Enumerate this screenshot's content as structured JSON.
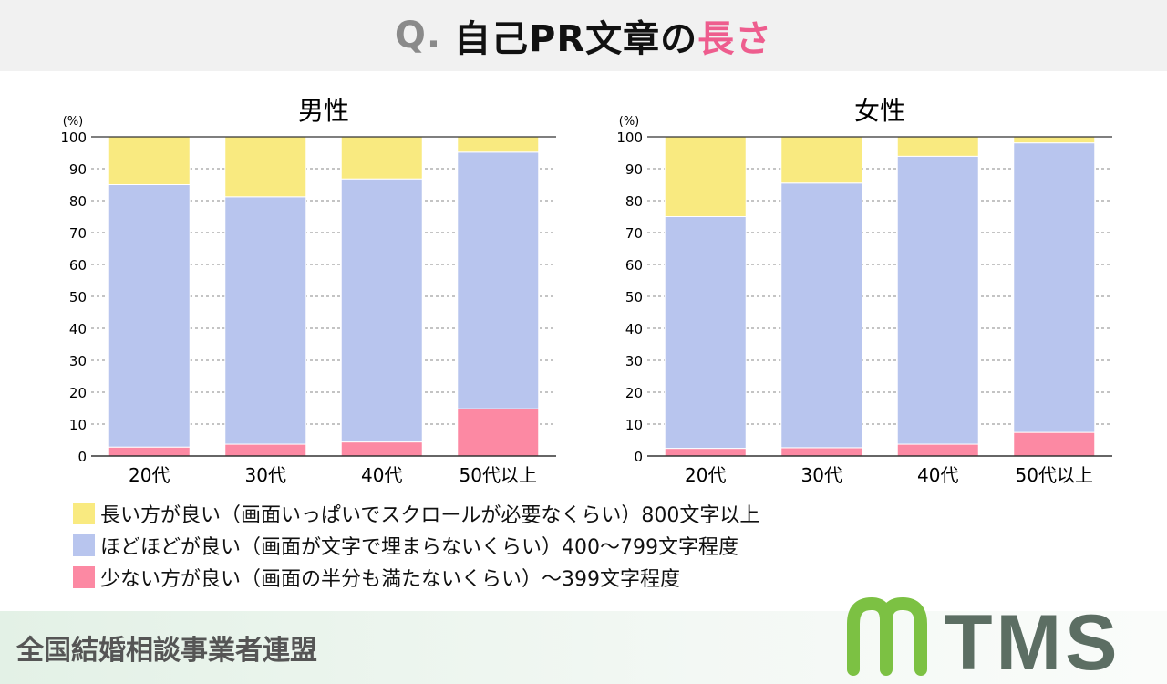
{
  "header": {
    "q": "Q.",
    "title_main": "自己PR文章の",
    "title_highlight": "長さ"
  },
  "colors": {
    "long": "#f9ea80",
    "medium": "#b8c5ee",
    "short": "#fc89a3",
    "highlight": "#ee5d8e",
    "logo_green": "#7cc143",
    "logo_gray": "#5c6e63"
  },
  "legend": [
    {
      "key": "long",
      "label": "長い方が良い（画面いっぱいでスクロールが必要なくらい）800文字以上"
    },
    {
      "key": "medium",
      "label": "ほどほどが良い（画面が文字で埋まらないくらい）400〜799文字程度"
    },
    {
      "key": "short",
      "label": "少ない方が良い（画面の半分も満たないくらい）〜399文字程度"
    }
  ],
  "chart_data": [
    {
      "type": "bar",
      "stacked": true,
      "title": "男性",
      "ylabel": "(%)",
      "ylim": [
        0,
        100
      ],
      "yticks": [
        0,
        10,
        20,
        30,
        40,
        50,
        60,
        70,
        80,
        90,
        100
      ],
      "grid": true,
      "categories": [
        "20代",
        "30代",
        "40代",
        "50代以上"
      ],
      "series": [
        {
          "key": "short",
          "values": [
            2.8,
            3.7,
            4.4,
            14.8
          ]
        },
        {
          "key": "medium",
          "values": [
            82.2,
            77.5,
            82.4,
            80.4
          ]
        },
        {
          "key": "long",
          "values": [
            15.0,
            18.8,
            13.2,
            4.8
          ]
        }
      ]
    },
    {
      "type": "bar",
      "stacked": true,
      "title": "女性",
      "ylabel": "(%)",
      "ylim": [
        0,
        100
      ],
      "yticks": [
        0,
        10,
        20,
        30,
        40,
        50,
        60,
        70,
        80,
        90,
        100
      ],
      "grid": true,
      "categories": [
        "20代",
        "30代",
        "40代",
        "50代以上"
      ],
      "series": [
        {
          "key": "short",
          "values": [
            2.4,
            2.6,
            3.7,
            7.4
          ]
        },
        {
          "key": "medium",
          "values": [
            72.6,
            82.9,
            90.2,
            90.7
          ]
        },
        {
          "key": "long",
          "values": [
            25.0,
            14.5,
            6.1,
            1.9
          ]
        }
      ]
    }
  ],
  "footer": {
    "org": "全国結婚相談事業者連盟",
    "logo_text": "TMS"
  }
}
